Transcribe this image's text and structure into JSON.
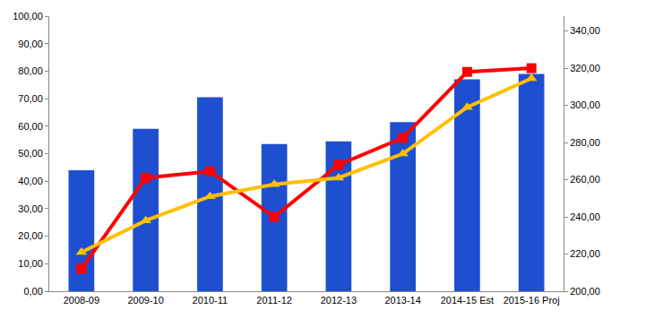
{
  "chart_data": {
    "type": "bar",
    "categories": [
      "2008-09",
      "2009-10",
      "2010-11",
      "2011-12",
      "2012-13",
      "2013-14",
      "2014-15 Est",
      "2015-16 Proj"
    ],
    "series": [
      {
        "type": "bar",
        "color": "#1f4fd1",
        "values": [
          44,
          59,
          70.5,
          53.5,
          54.5,
          61.5,
          77,
          79
        ]
      },
      {
        "type": "line",
        "axis": "y2",
        "color": "#ff0000",
        "marker": "square",
        "values": [
          212,
          261,
          264.5,
          240,
          268,
          282.5,
          318,
          320
        ]
      },
      {
        "type": "line",
        "axis": "y2",
        "color": "#ffc000",
        "marker": "triangle-up",
        "values": [
          221,
          238,
          251,
          257.5,
          261,
          274,
          299,
          314.5
        ]
      }
    ],
    "ylim": [
      0,
      100
    ],
    "yticks": [
      {
        "value": 0,
        "label": "0,00"
      },
      {
        "value": 10,
        "label": "10,00"
      },
      {
        "value": 20,
        "label": "20,00"
      },
      {
        "value": 30,
        "label": "30,00"
      },
      {
        "value": 40,
        "label": "40,00"
      },
      {
        "value": 50,
        "label": "50,00"
      },
      {
        "value": 60,
        "label": "60,00"
      },
      {
        "value": 70,
        "label": "70,00"
      },
      {
        "value": 80,
        "label": "80,00"
      },
      {
        "value": 90,
        "label": "90,00"
      },
      {
        "value": 100,
        "label": "100,00"
      }
    ],
    "y2lim": [
      200,
      348
    ],
    "y2ticks": [
      {
        "value": 200,
        "label": "200,00"
      },
      {
        "value": 220,
        "label": "220,00"
      },
      {
        "value": 240,
        "label": "240,00"
      },
      {
        "value": 260,
        "label": "260,00"
      },
      {
        "value": 280,
        "label": "280,00"
      },
      {
        "value": 300,
        "label": "300,00"
      },
      {
        "value": 320,
        "label": "320,00"
      },
      {
        "value": 340,
        "label": "340,00"
      }
    ],
    "grid": false
  }
}
